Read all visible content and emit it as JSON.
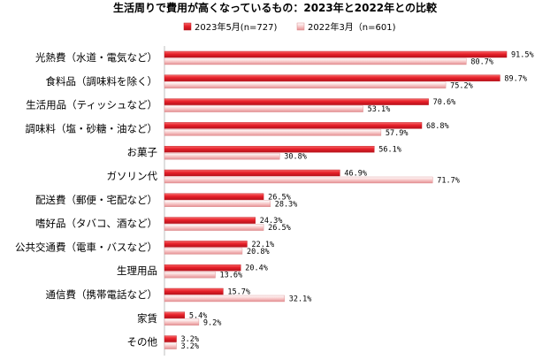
{
  "chart_data": {
    "type": "bar",
    "orientation": "horizontal",
    "title": "生活周りで費用が高くなっているもの：2023年と2022年との比較",
    "xlabel": "",
    "ylabel": "",
    "xlim": [
      0,
      100
    ],
    "grid": false,
    "legend_position": "top",
    "value_suffix": "%",
    "categories": [
      "光熱費（水道・電気など）",
      "食料品（調味料を除く）",
      "生活用品（ティッシュなど）",
      "調味料（塩・砂糖・油など）",
      "お菓子",
      "ガソリン代",
      "配送費（郵便・宅配など）",
      "嗜好品（タバコ、酒など）",
      "公共交通費（電車・バスなど）",
      "生理用品",
      "通信費（携帯電話など）",
      "家賃",
      "その他"
    ],
    "series": [
      {
        "name": "2023年5月(n=727)",
        "color": "#e8202a",
        "values": [
          91.5,
          89.7,
          70.6,
          68.8,
          56.1,
          46.9,
          26.5,
          24.3,
          22.1,
          20.4,
          15.7,
          5.4,
          3.2
        ]
      },
      {
        "name": "2022年3月（n=601)",
        "color": "#f4b8b8",
        "values": [
          80.7,
          75.2,
          53.1,
          57.9,
          30.8,
          71.7,
          28.3,
          26.5,
          20.8,
          13.6,
          32.1,
          9.2,
          3.2
        ]
      }
    ]
  }
}
